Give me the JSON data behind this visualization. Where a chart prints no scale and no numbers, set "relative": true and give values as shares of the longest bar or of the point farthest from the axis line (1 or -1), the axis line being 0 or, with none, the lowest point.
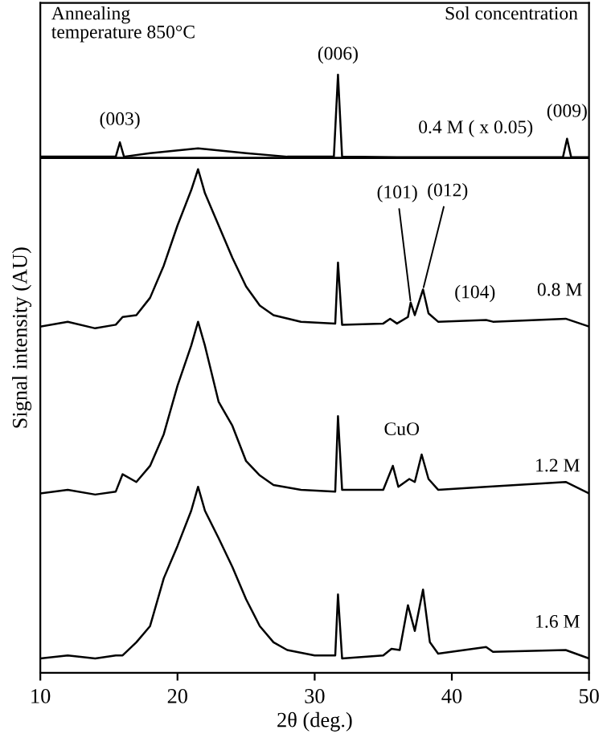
{
  "chart_data": {
    "type": "line",
    "relative": true,
    "xlabel": "2θ (deg.)",
    "ylabel": "Signal intensity (AU)",
    "xlim": [
      10,
      50
    ],
    "xticks": [
      10,
      20,
      30,
      40,
      50
    ],
    "tick_labels": "x",
    "grid": false,
    "marker": "none",
    "line_style": "solid",
    "series": [
      {
        "name": "0.4 M ( x 0.05)",
        "color": "#000000",
        "x": [
          10,
          15.5,
          15.8,
          16.1,
          18,
          21.5,
          25,
          28,
          31.4,
          31.7,
          32,
          36,
          40,
          48.1,
          48.4,
          48.7,
          50
        ],
        "values": [
          0.863,
          0.863,
          0.887,
          0.863,
          0.869,
          0.877,
          0.869,
          0.863,
          0.863,
          1.0,
          0.863,
          0.862,
          0.862,
          0.862,
          0.893,
          0.862,
          0.862
        ]
      },
      {
        "name": "0.8 M",
        "color": "#000000",
        "x": [
          10,
          12,
          14,
          15.5,
          16,
          17,
          18,
          19,
          20,
          21,
          21.5,
          22,
          23,
          24,
          25,
          26,
          27,
          29,
          31.5,
          31.7,
          32,
          35,
          35.5,
          36,
          36.8,
          37,
          37.3,
          37.9,
          38.3,
          39,
          42.5,
          43,
          48.3,
          50
        ],
        "values": [
          0.579,
          0.587,
          0.576,
          0.582,
          0.595,
          0.598,
          0.627,
          0.681,
          0.748,
          0.807,
          0.842,
          0.802,
          0.748,
          0.694,
          0.646,
          0.614,
          0.598,
          0.587,
          0.584,
          0.686,
          0.582,
          0.584,
          0.592,
          0.584,
          0.595,
          0.619,
          0.598,
          0.641,
          0.601,
          0.587,
          0.59,
          0.587,
          0.592,
          0.579
        ]
      },
      {
        "name": "1.2 M",
        "color": "#000000",
        "x": [
          10,
          12,
          14,
          15.5,
          16,
          17,
          18,
          19,
          20,
          21,
          21.5,
          22,
          23,
          24,
          25,
          26,
          27,
          29,
          31.5,
          31.7,
          32,
          35,
          35.7,
          36.1,
          36.9,
          37.3,
          37.8,
          38.3,
          39,
          42.5,
          48.3,
          50
        ],
        "values": [
          0.3,
          0.306,
          0.298,
          0.303,
          0.332,
          0.319,
          0.346,
          0.399,
          0.48,
          0.547,
          0.587,
          0.547,
          0.453,
          0.413,
          0.354,
          0.33,
          0.314,
          0.306,
          0.303,
          0.429,
          0.306,
          0.306,
          0.346,
          0.311,
          0.324,
          0.319,
          0.365,
          0.324,
          0.306,
          0.311,
          0.319,
          0.3
        ]
      },
      {
        "name": "1.6 M",
        "color": "#000000",
        "x": [
          10,
          12,
          14,
          15.5,
          16,
          17,
          18,
          19,
          20,
          21,
          21.5,
          22,
          23,
          24,
          25,
          26,
          27,
          28,
          30,
          31.5,
          31.7,
          32,
          35,
          35.6,
          36.2,
          36.8,
          37.3,
          37.9,
          38.4,
          39,
          42.5,
          43,
          48.3,
          50
        ],
        "values": [
          0.024,
          0.029,
          0.024,
          0.029,
          0.029,
          0.051,
          0.078,
          0.158,
          0.212,
          0.271,
          0.311,
          0.271,
          0.225,
          0.177,
          0.123,
          0.078,
          0.051,
          0.038,
          0.029,
          0.029,
          0.131,
          0.024,
          0.029,
          0.04,
          0.038,
          0.113,
          0.07,
          0.139,
          0.051,
          0.032,
          0.043,
          0.035,
          0.038,
          0.024
        ]
      }
    ],
    "ref_lines": [
      {
        "axis": "y",
        "value": 0.861,
        "color": "#000000"
      }
    ],
    "annotations": [
      "Annealing\ntemperature 850°C",
      "Sol concentration",
      {
        "text": "(003)",
        "x": 15.8,
        "y": 0.887
      },
      {
        "text": "(006)",
        "x": 31.7,
        "y": 1.0
      },
      {
        "text": "(009)",
        "x": 48.4,
        "y": 0.893
      },
      {
        "text": "(101)",
        "x": 37.0,
        "y": 0.619
      },
      {
        "text": "(012)",
        "x": 37.9,
        "y": 0.641
      },
      {
        "text": "(104)",
        "x": 42.5,
        "y": 0.59
      },
      {
        "text": "CuO",
        "x": 35.7,
        "y": 0.346
      }
    ]
  }
}
